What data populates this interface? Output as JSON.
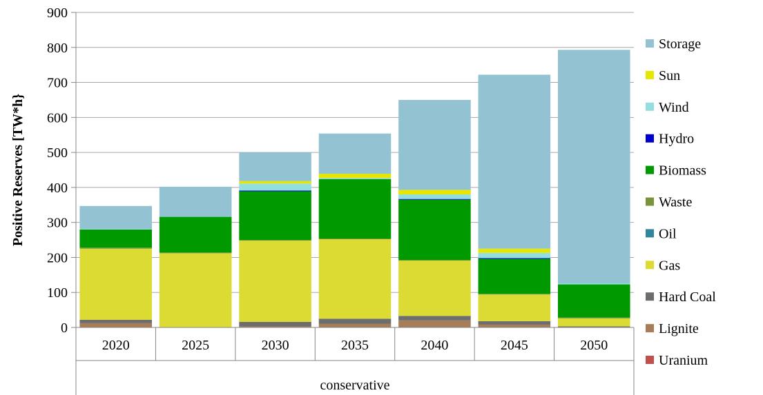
{
  "chart_data": {
    "type": "bar",
    "stacked": true,
    "title": "",
    "ylabel": "Positive Reserves [TW*h}",
    "xlabel": "",
    "group_label": "conservative",
    "categories": [
      "2020",
      "2025",
      "2030",
      "2035",
      "2040",
      "2045",
      "2050"
    ],
    "ylim": [
      0,
      900
    ],
    "yticks": [
      0,
      100,
      200,
      300,
      400,
      500,
      600,
      700,
      800,
      900
    ],
    "grid": true,
    "legend_position": "right",
    "series": [
      {
        "name": "Uranium",
        "color": "#c0504d",
        "values": [
          0,
          0,
          0,
          0,
          0,
          0,
          0
        ]
      },
      {
        "name": "Lignite",
        "color": "#a97c58",
        "values": [
          12,
          0,
          3,
          10,
          20,
          8,
          0
        ]
      },
      {
        "name": "Hard Coal",
        "color": "#6d6d6d",
        "values": [
          10,
          0,
          13,
          15,
          13,
          10,
          3
        ]
      },
      {
        "name": "Gas",
        "color": "#dbdb33",
        "values": [
          203,
          212,
          232,
          227,
          158,
          76,
          23
        ]
      },
      {
        "name": "Oil",
        "color": "#31859c",
        "values": [
          0,
          0,
          0,
          0,
          0,
          0,
          0
        ]
      },
      {
        "name": "Waste",
        "color": "#77933c",
        "values": [
          3,
          2,
          2,
          2,
          2,
          2,
          2
        ]
      },
      {
        "name": "Biomass",
        "color": "#009900",
        "values": [
          52,
          102,
          139,
          170,
          172,
          100,
          95
        ]
      },
      {
        "name": "Hydro",
        "color": "#0000cc",
        "values": [
          0,
          0,
          2,
          0,
          2,
          2,
          0
        ]
      },
      {
        "name": "Wind",
        "color": "#93dfdf",
        "values": [
          1,
          1,
          20,
          3,
          13,
          15,
          3
        ]
      },
      {
        "name": "Sun",
        "color": "#e6e600",
        "values": [
          0,
          0,
          7,
          12,
          13,
          12,
          0
        ]
      },
      {
        "name": "Storage",
        "color": "#93c3d3",
        "values": [
          66,
          85,
          82,
          115,
          257,
          497,
          667
        ]
      }
    ]
  }
}
